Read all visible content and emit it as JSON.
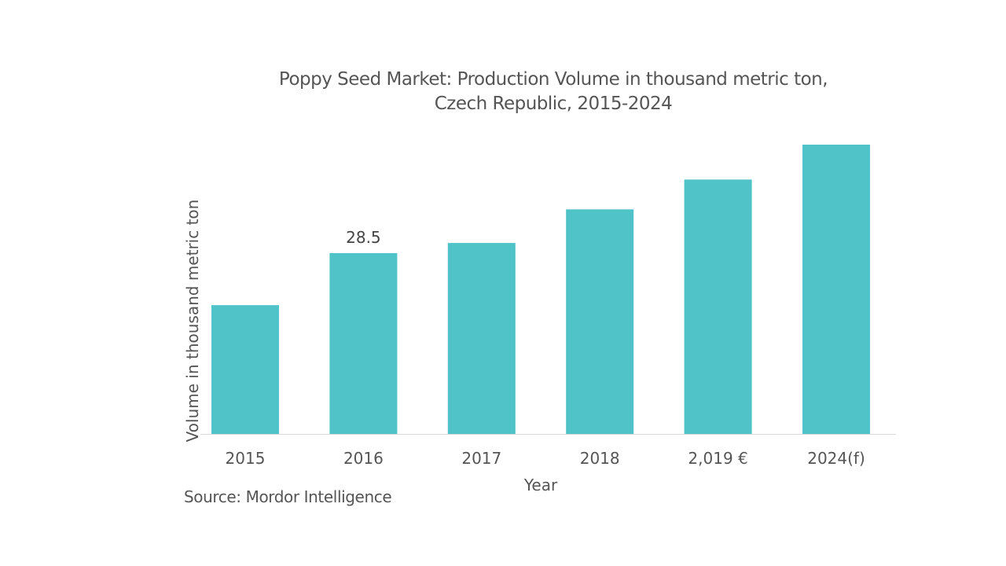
{
  "chart_data": {
    "type": "bar",
    "title": "Poppy Seed Market: Production Volume in thousand metric ton,",
    "subtitle": "Czech Republic, 2015-2024",
    "xlabel": "Year",
    "ylabel": "Volume in thousand metric ton",
    "categories": [
      "2015",
      "2016",
      "2017",
      "2018",
      "2,019 €",
      "2024(f)"
    ],
    "values": [
      20.3,
      28.5,
      30.1,
      35.4,
      40.1,
      45.6
    ],
    "data_labels": [
      null,
      "28.5",
      null,
      null,
      null,
      null
    ],
    "ylim": [
      0,
      48
    ],
    "grid": false,
    "bar_color": "#50c3c8"
  },
  "source": "Source: Mordor Intelligence"
}
